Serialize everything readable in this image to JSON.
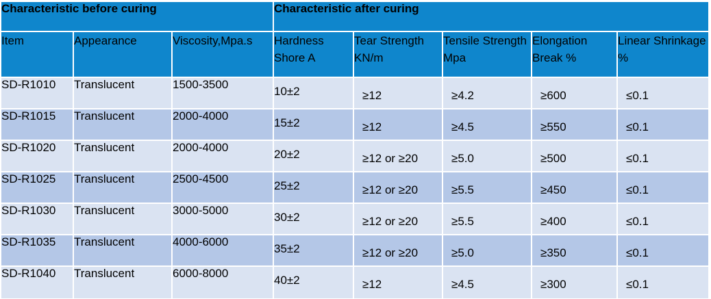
{
  "table": {
    "group_headers": {
      "before": "Characteristic before curing",
      "after": "Characteristic after curing"
    },
    "columns": [
      "Item",
      "Appearance",
      "Viscosity,Mpa.s",
      "Hardness Shore A",
      "Tear Strength KN/m",
      "Tensile Strength Mpa",
      "Elongation Break %",
      "Linear Shrinkage %"
    ],
    "rows": [
      [
        "SD-R1010",
        "Translucent",
        "1500-3500",
        "10±2",
        "≥12",
        "≥4.2",
        "≥600",
        "≤0.1"
      ],
      [
        "SD-R1015",
        "Translucent",
        "2000-4000",
        "15±2",
        "≥12",
        "≥4.5",
        "≥550",
        "≤0.1"
      ],
      [
        "SD-R1020",
        "Translucent",
        "2000-4000",
        "20±2",
        "≥12 or ≥20",
        "≥5.0",
        "≥500",
        "≤0.1"
      ],
      [
        "SD-R1025",
        "Translucent",
        "2500-4500",
        "25±2",
        "≥12 or ≥20",
        "≥5.5",
        "≥450",
        "≤0.1"
      ],
      [
        "SD-R1030",
        "Translucent",
        "3000-5000",
        "30±2",
        "≥12 or ≥20",
        "≥5.5",
        "≥400",
        "≤0.1"
      ],
      [
        "SD-R1035",
        "Translucent",
        "4000-6000",
        "35±2",
        "≥12 or ≥20",
        "≥5.0",
        "≥350",
        "≤0.1"
      ],
      [
        "SD-R1040",
        "Translucent",
        "6000-8000",
        "40±2",
        "≥12",
        "≥4.5",
        "≥300",
        "≤0.1"
      ]
    ]
  }
}
